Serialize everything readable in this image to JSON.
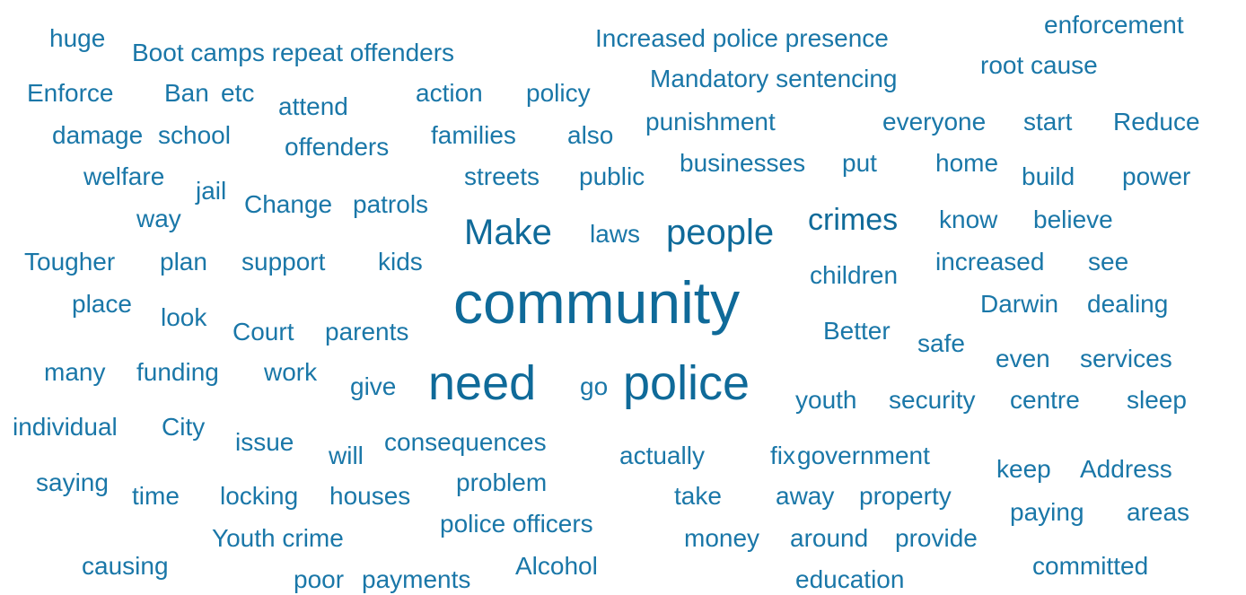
{
  "words": [
    "huge",
    "Boot camps repeat offenders",
    "Increased police presence",
    "enforcement",
    "Enforce",
    "Ban",
    "etc",
    "attend",
    "action",
    "policy",
    "Mandatory sentencing",
    "root cause",
    "damage",
    "school",
    "offenders",
    "families",
    "also",
    "punishment",
    "everyone",
    "start",
    "Reduce",
    "welfare",
    "jail",
    "streets",
    "public",
    "businesses",
    "put",
    "home",
    "build",
    "power",
    "Change",
    "patrols",
    "way",
    "Make",
    "laws",
    "people",
    "crimes",
    "know",
    "believe",
    "Tougher",
    "plan",
    "support",
    "kids",
    "children",
    "increased",
    "see",
    "community",
    "place",
    "look",
    "Darwin",
    "dealing",
    "Court",
    "parents",
    "Better",
    "safe",
    "many",
    "funding",
    "work",
    "give",
    "need",
    "go",
    "police",
    "even",
    "services",
    "youth",
    "security",
    "centre",
    "sleep",
    "individual",
    "City",
    "issue",
    "will",
    "consequences",
    "actually",
    "fix",
    "government",
    "keep",
    "Address",
    "saying",
    "time",
    "locking",
    "houses",
    "problem",
    "take",
    "away",
    "property",
    "paying",
    "areas",
    "police officers",
    "Youth crime",
    "money",
    "around",
    "provide",
    "causing",
    "Alcohol",
    "committed",
    "poor",
    "payments",
    "education"
  ]
}
